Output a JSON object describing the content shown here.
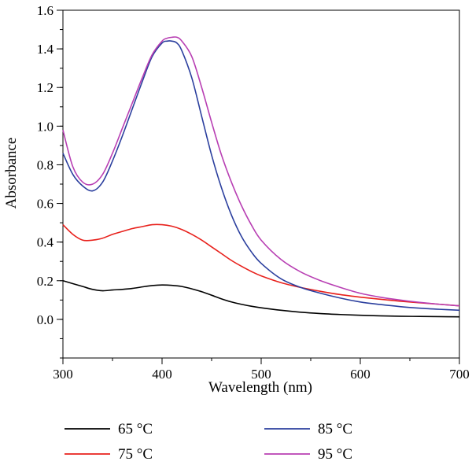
{
  "chart_data": {
    "type": "line",
    "title": "",
    "xlabel": "Wavelength (nm)",
    "ylabel": "Absorbance",
    "xlim": [
      300,
      700
    ],
    "ylim": [
      -0.2,
      1.6
    ],
    "xticks": [
      300,
      400,
      500,
      600,
      700
    ],
    "yticks": [
      0.0,
      0.2,
      0.4,
      0.6,
      0.8,
      1.0,
      1.2,
      1.4,
      1.6
    ],
    "ytick_labels": [
      "0.0",
      "0.2",
      "0.4",
      "0.6",
      "0.8",
      "1.0",
      "1.2",
      "1.4",
      "1.6"
    ],
    "grid": false,
    "legend_position": "bottom",
    "series": [
      {
        "name": "65 °C",
        "color": "#000000",
        "x": [
          300,
          310,
          320,
          330,
          340,
          350,
          360,
          370,
          380,
          390,
          400,
          410,
          420,
          430,
          440,
          450,
          460,
          470,
          480,
          490,
          500,
          520,
          540,
          560,
          580,
          600,
          620,
          640,
          660,
          680,
          700
        ],
        "y": [
          0.2,
          0.185,
          0.17,
          0.155,
          0.148,
          0.152,
          0.155,
          0.16,
          0.168,
          0.175,
          0.178,
          0.176,
          0.17,
          0.158,
          0.143,
          0.125,
          0.106,
          0.09,
          0.078,
          0.068,
          0.06,
          0.047,
          0.037,
          0.03,
          0.025,
          0.021,
          0.018,
          0.016,
          0.015,
          0.014,
          0.013
        ]
      },
      {
        "name": "75 °C",
        "color": "#e8211c",
        "x": [
          300,
          310,
          320,
          330,
          340,
          350,
          360,
          370,
          380,
          390,
          400,
          410,
          420,
          430,
          440,
          450,
          460,
          470,
          480,
          490,
          500,
          520,
          540,
          560,
          580,
          600,
          620,
          640,
          660,
          680,
          700
        ],
        "y": [
          0.49,
          0.44,
          0.41,
          0.41,
          0.42,
          0.44,
          0.455,
          0.47,
          0.48,
          0.49,
          0.49,
          0.482,
          0.465,
          0.44,
          0.41,
          0.375,
          0.34,
          0.305,
          0.275,
          0.248,
          0.225,
          0.19,
          0.165,
          0.145,
          0.128,
          0.115,
          0.104,
          0.094,
          0.086,
          0.078,
          0.07
        ]
      },
      {
        "name": "85 °C",
        "color": "#2b3f9e",
        "x": [
          300,
          310,
          320,
          330,
          340,
          350,
          360,
          370,
          380,
          390,
          400,
          405,
          410,
          415,
          420,
          430,
          440,
          450,
          460,
          470,
          480,
          490,
          500,
          520,
          540,
          560,
          580,
          600,
          620,
          640,
          660,
          680,
          700
        ],
        "y": [
          0.86,
          0.75,
          0.69,
          0.665,
          0.71,
          0.82,
          0.95,
          1.09,
          1.23,
          1.36,
          1.43,
          1.44,
          1.44,
          1.43,
          1.39,
          1.25,
          1.05,
          0.85,
          0.68,
          0.54,
          0.43,
          0.35,
          0.29,
          0.21,
          0.165,
          0.135,
          0.11,
          0.09,
          0.077,
          0.066,
          0.058,
          0.052,
          0.047
        ]
      },
      {
        "name": "95 °C",
        "color": "#b83fb3",
        "x": [
          300,
          310,
          320,
          330,
          340,
          350,
          360,
          370,
          380,
          390,
          400,
          405,
          410,
          415,
          420,
          430,
          440,
          450,
          460,
          470,
          480,
          490,
          500,
          520,
          540,
          560,
          580,
          600,
          620,
          640,
          660,
          680,
          700
        ],
        "y": [
          0.98,
          0.79,
          0.71,
          0.7,
          0.75,
          0.86,
          0.99,
          1.12,
          1.25,
          1.37,
          1.44,
          1.455,
          1.46,
          1.46,
          1.44,
          1.36,
          1.2,
          1.02,
          0.85,
          0.71,
          0.59,
          0.49,
          0.41,
          0.31,
          0.245,
          0.2,
          0.165,
          0.135,
          0.115,
          0.1,
          0.088,
          0.078,
          0.07
        ]
      }
    ]
  }
}
